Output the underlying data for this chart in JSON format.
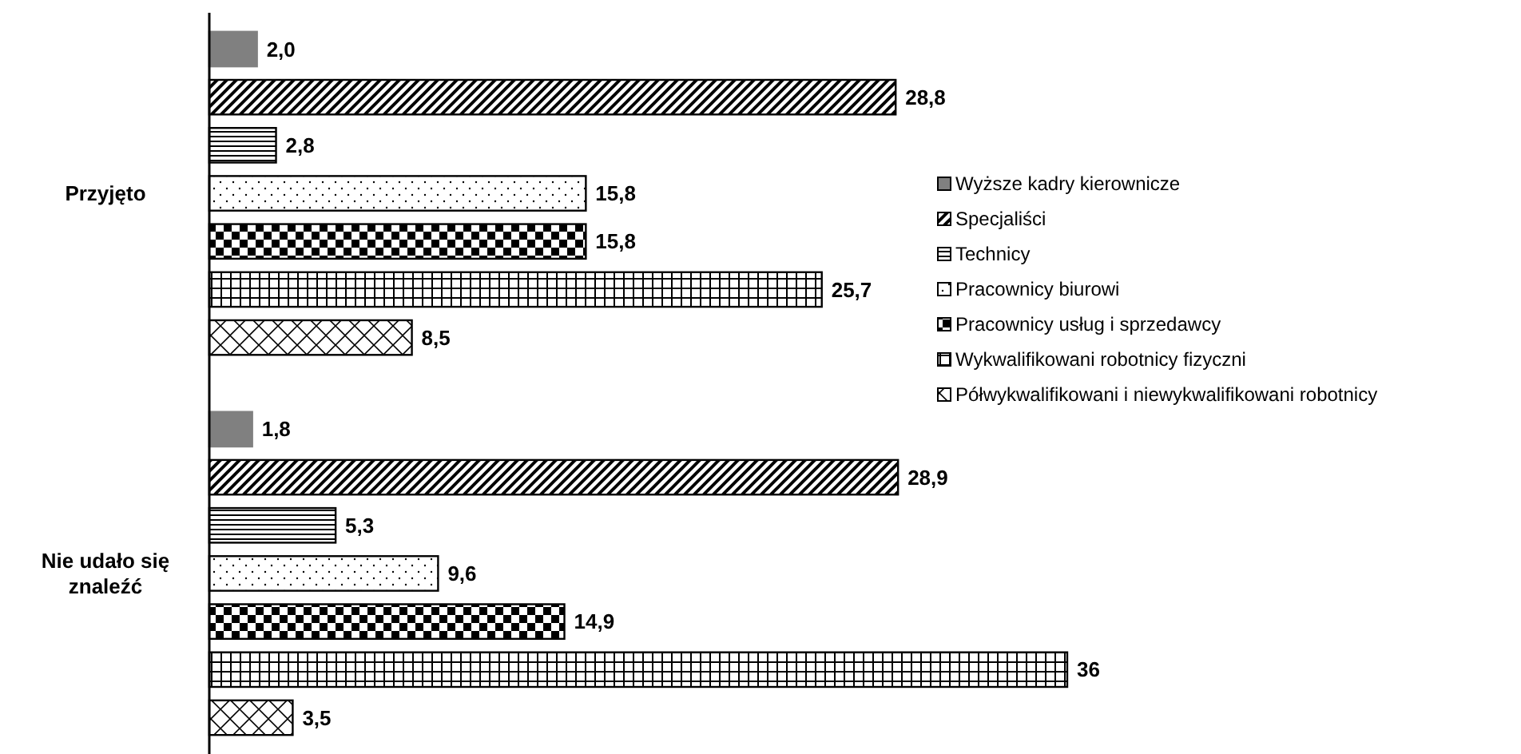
{
  "chart_data": {
    "type": "bar",
    "orientation": "horizontal",
    "categories": [
      "Przyjęto",
      "Nie udało się znaleźć"
    ],
    "legend": "right",
    "data_labels": false,
    "series": [
      {
        "name": "Wyższe kadry kierownicze",
        "color": "#808080",
        "values": [
          2.0,
          1.8
        ],
        "value_labels": [
          "2,0",
          "1,8"
        ]
      },
      {
        "name": "Specjaliści",
        "color": "#000000",
        "values": [
          28.8,
          28.9
        ],
        "value_labels": [
          "28,8",
          "28,9"
        ]
      },
      {
        "name": "Technicy",
        "color": "#000000",
        "values": [
          2.8,
          5.3
        ],
        "value_labels": [
          "2,8",
          "5,3"
        ]
      },
      {
        "name": "Pracownicy biurowi",
        "color": "#000000",
        "values": [
          15.8,
          9.6
        ],
        "value_labels": [
          "15,8",
          "9,6"
        ]
      },
      {
        "name": "Pracownicy usług i sprzedawcy",
        "color": "#000000",
        "values": [
          15.8,
          14.9
        ],
        "value_labels": [
          "15,8",
          "14,9"
        ]
      },
      {
        "name": "Wykwalifikowani robotnicy fizyczni",
        "color": "#000000",
        "values": [
          25.7,
          36
        ],
        "value_labels": [
          "25,7",
          "36"
        ]
      },
      {
        "name": "Półwykwalifikowani i niewykwalifikowani robotnicy",
        "color": "#000000",
        "values": [
          8.5,
          3.5
        ],
        "value_labels": [
          "8,5",
          "3,5"
        ]
      }
    ]
  }
}
